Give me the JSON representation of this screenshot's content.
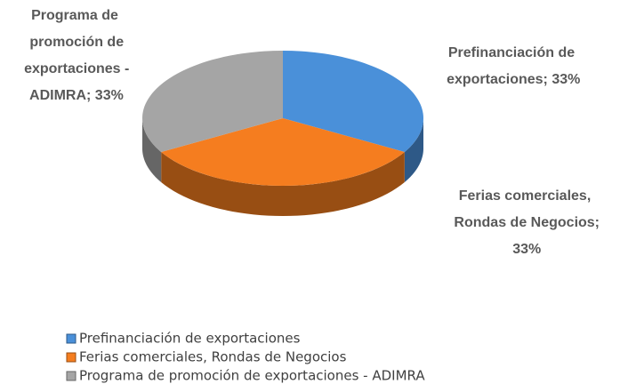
{
  "chart_data": {
    "type": "pie",
    "categories": [
      "Prefinanciación de exportaciones",
      "Ferias comerciales, Rondas de Negocios",
      "Programa de promoción de exportaciones - ADIMRA"
    ],
    "values": [
      33,
      33,
      33
    ],
    "value_labels": [
      "Prefinanciación de exportaciones; 33%",
      "Ferias comerciales, Rondas de Negocios; 33%",
      "Programa de promoción de exportaciones - ADIMRA; 33%"
    ],
    "colors": [
      "#4a90d9",
      "#f57d1f",
      "#a5a5a5"
    ],
    "legend": "bottom"
  }
}
